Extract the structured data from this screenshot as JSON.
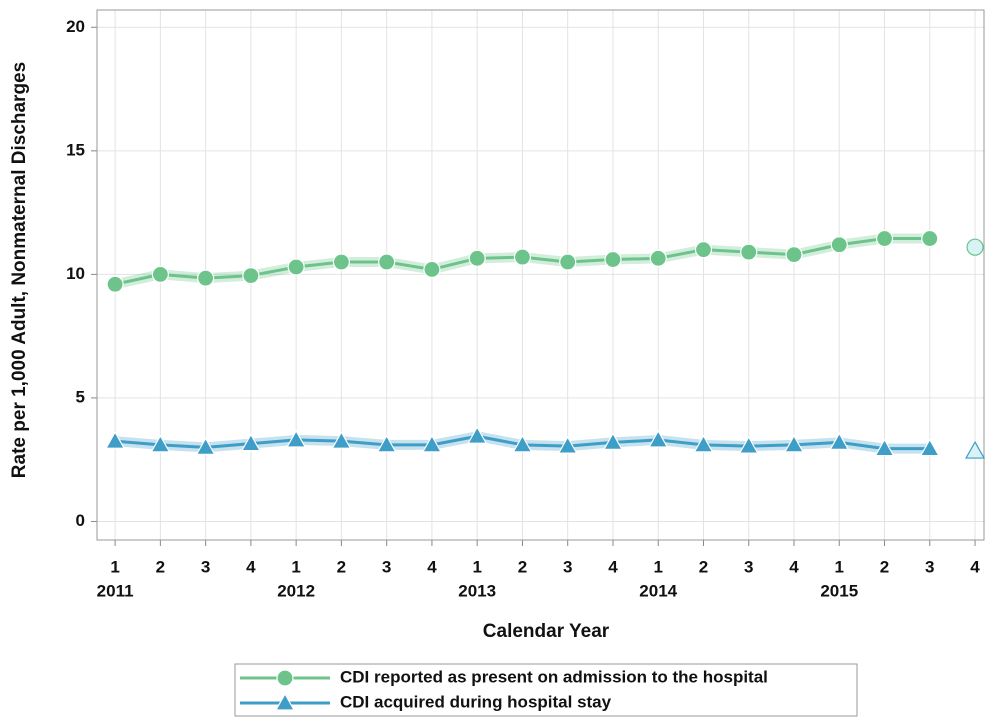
{
  "chart_data": {
    "type": "line",
    "x_label": "Calendar Year",
    "y_label": "Rate per 1,000 Adult, Nonmaternal Discharges",
    "categories": [
      "1",
      "2",
      "3",
      "4",
      "1",
      "2",
      "3",
      "4",
      "1",
      "2",
      "3",
      "4",
      "1",
      "2",
      "3",
      "4",
      "1",
      "2",
      "3",
      "4"
    ],
    "years": [
      "2011",
      null,
      null,
      null,
      "2012",
      null,
      null,
      null,
      "2013",
      null,
      null,
      null,
      "2014",
      null,
      null,
      null,
      "2015",
      null,
      null,
      null
    ],
    "series": [
      {
        "name": "CDI reported as present on admission to the hospital",
        "color": "#6cc48a",
        "marker": "circle",
        "values": [
          9.6,
          10.0,
          9.85,
          9.95,
          10.3,
          10.5,
          10.5,
          10.2,
          10.65,
          10.7,
          10.5,
          10.6,
          10.65,
          11.0,
          10.9,
          10.8,
          11.2,
          11.45,
          11.45,
          11.1
        ]
      },
      {
        "name": "CDI acquired during hospital stay",
        "color": "#3e9ec8",
        "marker": "triangle",
        "values": [
          3.25,
          3.1,
          3.0,
          3.15,
          3.3,
          3.25,
          3.1,
          3.1,
          3.45,
          3.1,
          3.05,
          3.2,
          3.3,
          3.1,
          3.05,
          3.1,
          3.2,
          2.95,
          2.95,
          2.85
        ]
      }
    ],
    "ylim": [
      -0.75,
      20.7
    ],
    "yticks": [
      0,
      5,
      10,
      15,
      20
    ],
    "grid": true
  }
}
